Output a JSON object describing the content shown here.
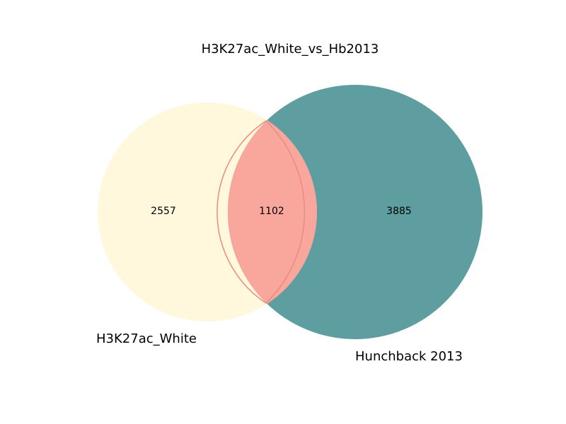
{
  "chart_data": {
    "type": "venn",
    "title": "H3K27ac_White_vs_Hb2013",
    "sets": [
      {
        "name": "H3K27ac_White",
        "only_count": "2557",
        "color": "#fff8dc"
      },
      {
        "name": "Hunchback 2013",
        "only_count": "3885",
        "color": "#5f9ea0"
      }
    ],
    "intersection": {
      "count": "1102",
      "color": "#f9a79d",
      "edge_color": "#ec8a80"
    }
  }
}
